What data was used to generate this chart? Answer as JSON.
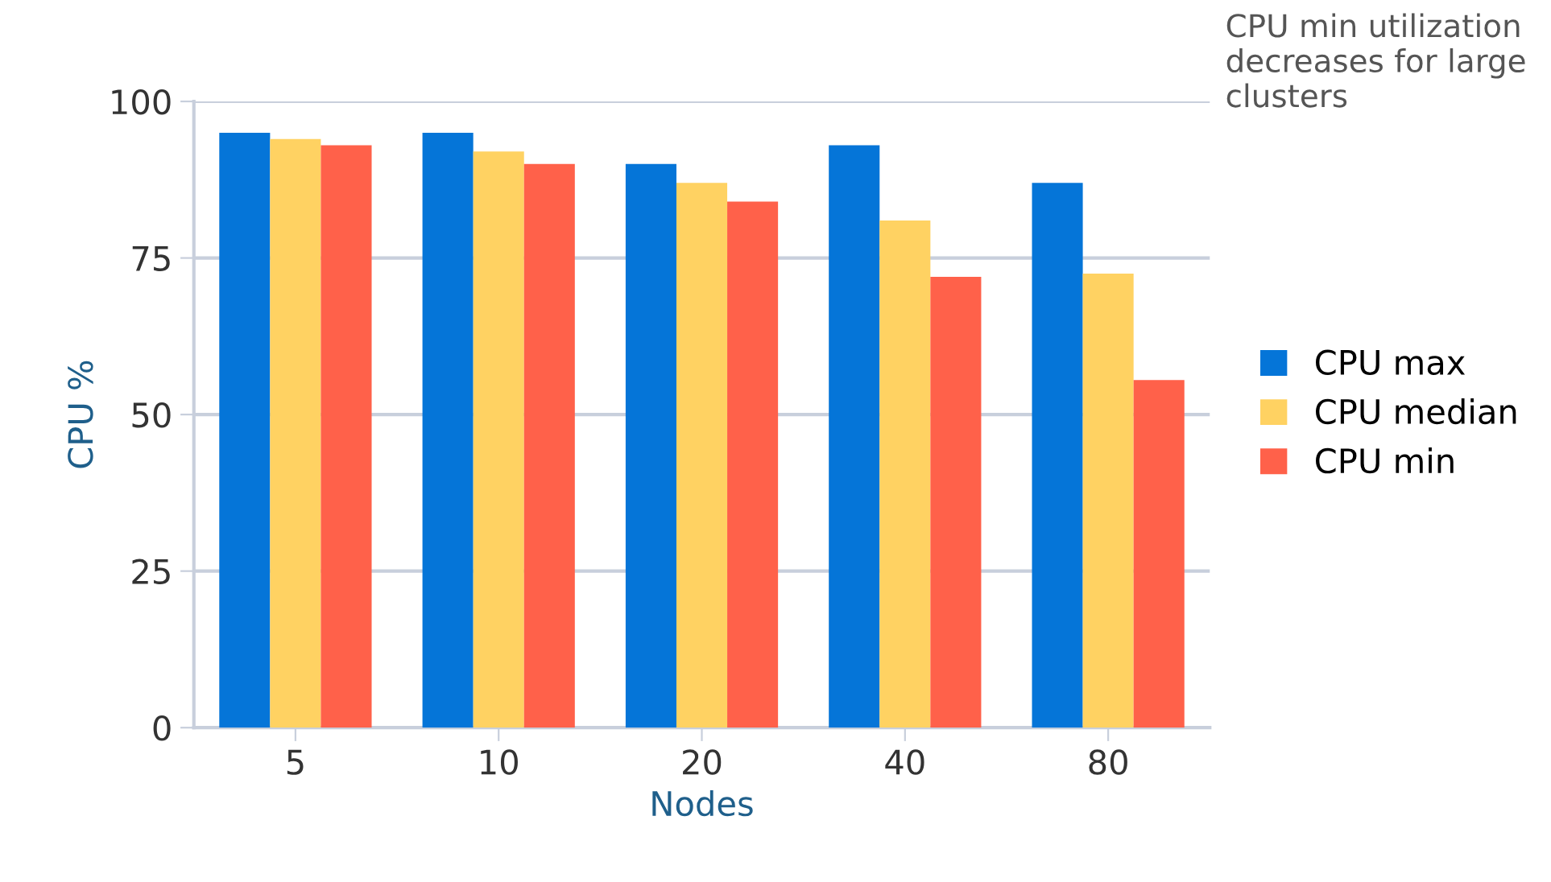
{
  "chart_data": {
    "type": "bar",
    "xlabel": "Nodes",
    "ylabel": "CPU %",
    "categories": [
      "5",
      "10",
      "20",
      "40",
      "80"
    ],
    "series": [
      {
        "name": "CPU max",
        "color": "#0575d8",
        "values": [
          95,
          95,
          90,
          93,
          87
        ]
      },
      {
        "name": "CPU median",
        "color": "#ffd262",
        "values": [
          94,
          92,
          87,
          81,
          72.5
        ]
      },
      {
        "name": "CPU min",
        "color": "#ff614a",
        "values": [
          93,
          90,
          84,
          72,
          55.5
        ]
      }
    ],
    "ylim": [
      0,
      100
    ],
    "yticks": [
      0,
      25,
      50,
      75,
      100
    ],
    "grid": "y",
    "legend": "right",
    "annotations": [
      "CPU min utilization decreases for large clusters"
    ]
  }
}
